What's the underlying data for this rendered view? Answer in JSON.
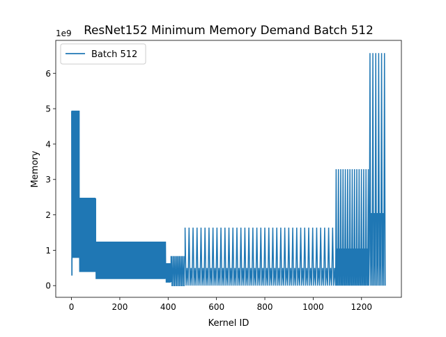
{
  "chart_data": {
    "type": "line",
    "title": "ResNet152 Minimum Memory Demand Batch 512",
    "xlabel": "Kernel ID",
    "ylabel": "Memory",
    "y_offset_label": "1e9",
    "xlim": [
      -65,
      1365
    ],
    "ylim": [
      -0.33,
      6.93
    ],
    "y_scale_factor": 1000000000,
    "x_ticks": [
      0,
      200,
      400,
      600,
      800,
      1000,
      1200
    ],
    "x_tick_labels": [
      "0",
      "200",
      "400",
      "600",
      "800",
      "1000",
      "1200"
    ],
    "y_ticks": [
      0,
      1,
      2,
      3,
      4,
      5,
      6
    ],
    "y_tick_labels": [
      "0",
      "1",
      "2",
      "3",
      "4",
      "5",
      "6"
    ],
    "grid": false,
    "legend": {
      "position": "top-left",
      "entries": [
        "Batch 512"
      ]
    },
    "series": [
      {
        "name": "Batch 512",
        "color": "#1f77b4",
        "segments": [
          {
            "x_start": 0,
            "x_end": 3,
            "period": 3,
            "high": 4.93,
            "low": 0.3
          },
          {
            "x_start": 3,
            "x_end": 32,
            "period": 3.5,
            "high": 4.93,
            "low": 0.8
          },
          {
            "x_start": 32,
            "x_end": 100,
            "period": 4,
            "high": 2.47,
            "low": 0.4
          },
          {
            "x_start": 100,
            "x_end": 390,
            "period": 4,
            "high": 1.23,
            "low": 0.2
          },
          {
            "x_start": 390,
            "x_end": 412,
            "period": 4,
            "high": 0.62,
            "low": 0.1
          },
          {
            "x_start": 412,
            "x_end": 470,
            "period": 8,
            "high": 0.82,
            "low": 0.0
          },
          {
            "x_start": 470,
            "x_end": 1095,
            "period": 16.5,
            "high": 1.64,
            "low": 0.0,
            "mid": 0.5
          },
          {
            "x_start": 1095,
            "x_end": 1235,
            "period": 9.5,
            "high": 3.29,
            "low": 0.0,
            "mid": 1.05
          },
          {
            "x_start": 1235,
            "x_end": 1300,
            "period": 12,
            "high": 6.57,
            "low": 0.0,
            "mid": 2.05
          }
        ]
      }
    ]
  }
}
